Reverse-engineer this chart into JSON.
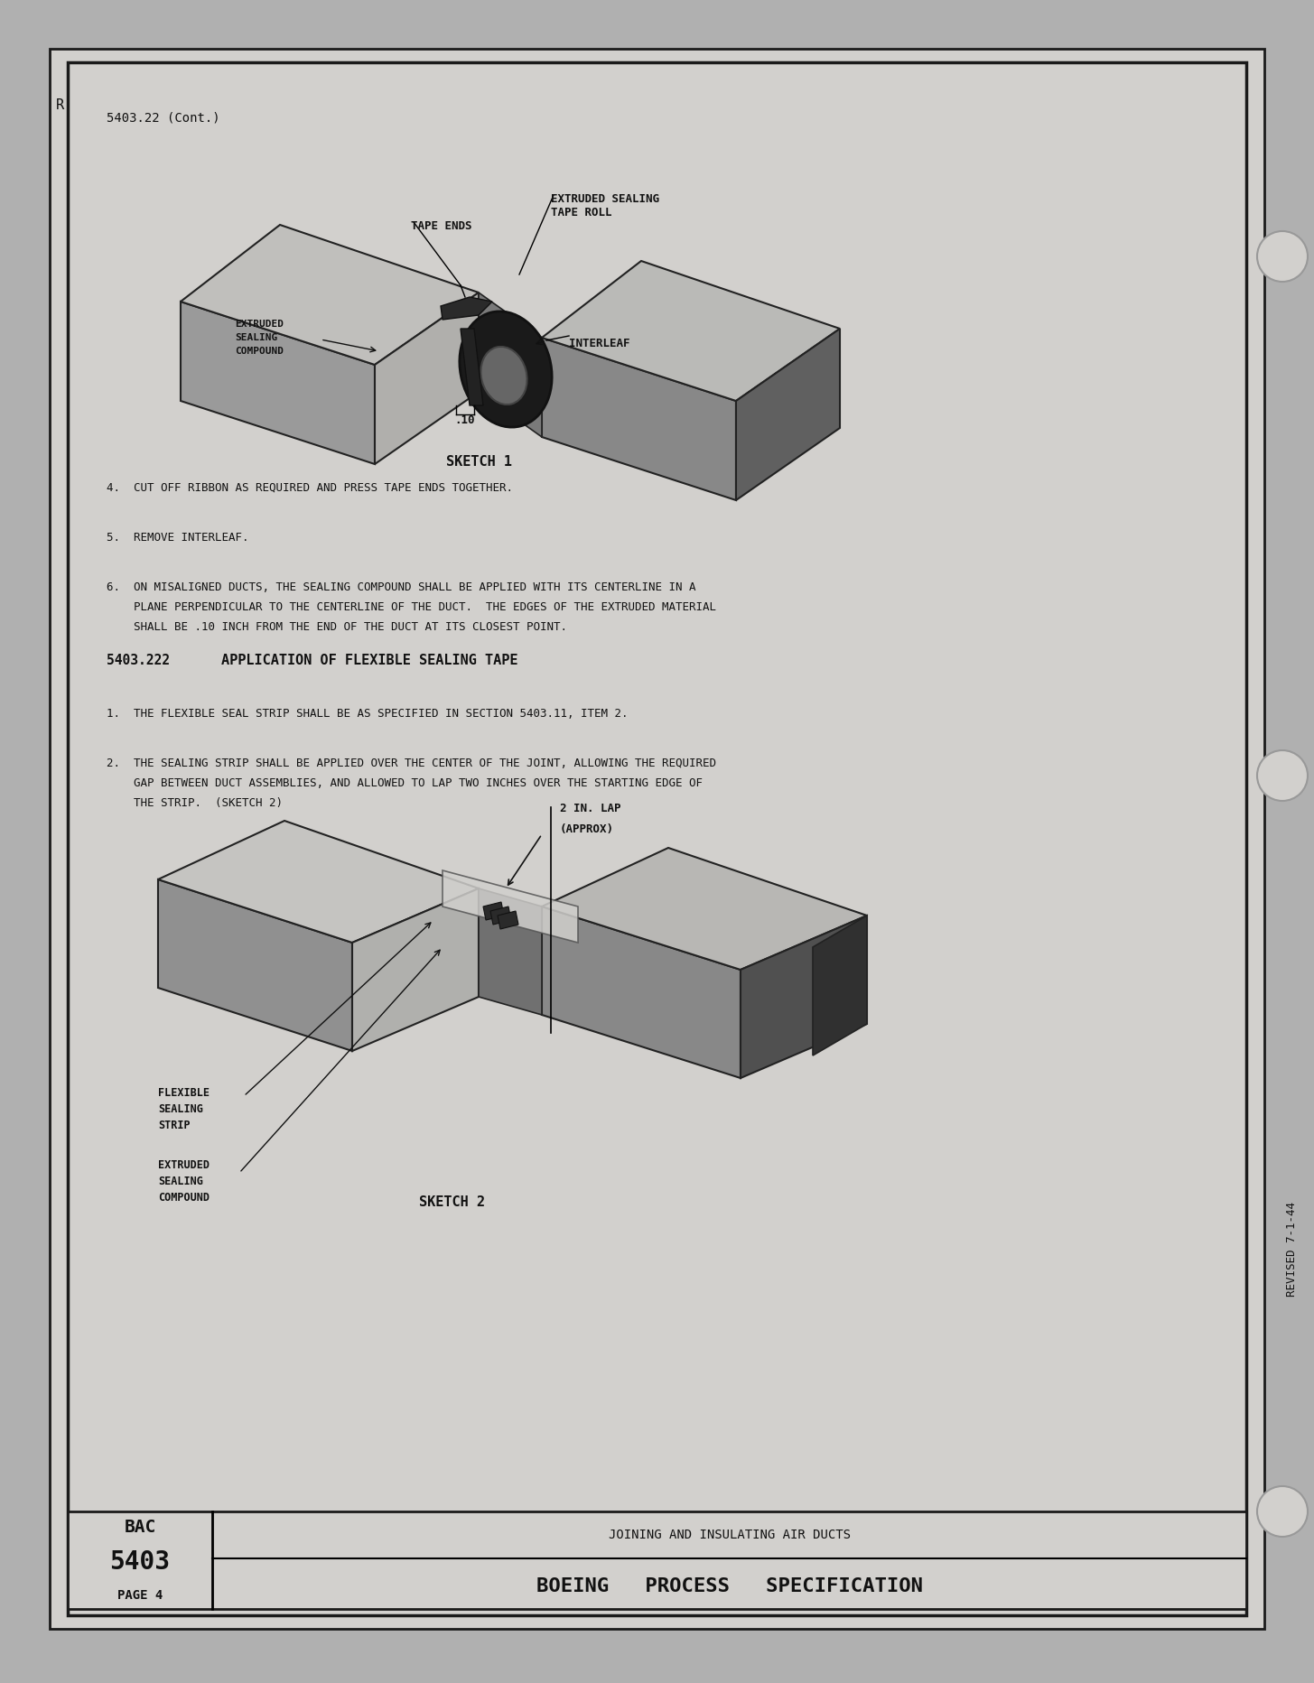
{
  "page_bg": "#b0b0b0",
  "inner_bg": "#d2d0cd",
  "border_color": "#1a1a1a",
  "text_color": "#111111",
  "section_label": "5403.22 (Cont.)",
  "sketch1_label": "SKETCH 1",
  "sketch2_label": "SKETCH 2",
  "section2_number": "5403.222",
  "section2_title": "APPLICATION OF FLEXIBLE SEALING TAPE",
  "item4": "4.  CUT OFF RIBBON AS REQUIRED AND PRESS TAPE ENDS TOGETHER.",
  "item5": "5.  REMOVE INTERLEAF.",
  "item6_1": "6.  ON MISALIGNED DUCTS, THE SEALING COMPOUND SHALL BE APPLIED WITH ITS CENTERLINE IN A",
  "item6_2": "    PLANE PERPENDICULAR TO THE CENTERLINE OF THE DUCT.  THE EDGES OF THE EXTRUDED MATERIAL",
  "item6_3": "    SHALL BE .10 INCH FROM THE END OF THE DUCT AT ITS CLOSEST POINT.",
  "item1_s2": "1.  THE FLEXIBLE SEAL STRIP SHALL BE AS SPECIFIED IN SECTION 5403.11, ITEM 2.",
  "item2_s2_1": "2.  THE SEALING STRIP SHALL BE APPLIED OVER THE CENTER OF THE JOINT, ALLOWING THE REQUIRED",
  "item2_s2_2": "    GAP BETWEEN DUCT ASSEMBLIES, AND ALLOWED TO LAP TWO INCHES OVER THE STARTING EDGE OF",
  "item2_s2_3": "    THE STRIP.  (SKETCH 2)",
  "marker_R": "R",
  "footer_left_line1": "BAC",
  "footer_left_line2": "5403",
  "footer_left_line3": "PAGE 4",
  "footer_center": "JOINING AND INSULATING AIR DUCTS",
  "footer_bottom": "BOEING   PROCESS   SPECIFICATION",
  "revised": "REVISED 7-1-44",
  "lap_label_1": "2 IN. LAP",
  "lap_label_2": "(APPROX)",
  "tape_ends_label": "TAPE ENDS",
  "ext_seal_tape_roll_1": "EXTRUDED SEALING",
  "ext_seal_tape_roll_2": "TAPE ROLL",
  "ext_seal_comp_label_1": "EXTRUDED",
  "ext_seal_comp_label_2": "SEALING",
  "ext_seal_comp_label_3": "COMPOUND",
  "interleaf_label": "INTERLEAF",
  "flex_seal_strip_1": "FLEXIBLE",
  "flex_seal_strip_2": "SEALING",
  "flex_seal_strip_3": "STRIP",
  "ext_seal_comp2_1": "EXTRUDED",
  "ext_seal_comp2_2": "SEALING",
  "ext_seal_comp2_3": "COMPOUND"
}
